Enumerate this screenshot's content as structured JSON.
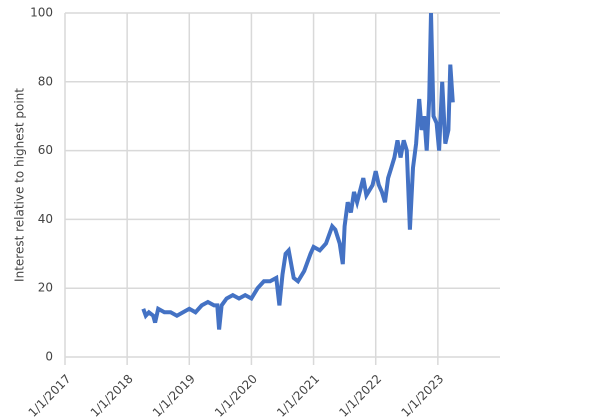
{
  "chart_data": {
    "type": "line",
    "ylabel": "Interest relative to highest point",
    "xlim": [
      2017,
      2024
    ],
    "ylim": [
      0,
      100
    ],
    "xticks": [
      {
        "value": 2017,
        "label": "1/1/2017"
      },
      {
        "value": 2018,
        "label": "1/1/2018"
      },
      {
        "value": 2019,
        "label": "1/1/2019"
      },
      {
        "value": 2020,
        "label": "1/1/2020"
      },
      {
        "value": 2021,
        "label": "1/1/2021"
      },
      {
        "value": 2022,
        "label": "1/1/2022"
      },
      {
        "value": 2023,
        "label": "1/1/2023"
      }
    ],
    "yticks": [
      0,
      20,
      40,
      60,
      80,
      100
    ],
    "grid": true,
    "x": [
      2018.26,
      2018.3,
      2018.35,
      2018.42,
      2018.45,
      2018.5,
      2018.6,
      2018.7,
      2018.8,
      2018.9,
      2019.0,
      2019.1,
      2019.2,
      2019.3,
      2019.4,
      2019.45,
      2019.48,
      2019.52,
      2019.6,
      2019.7,
      2019.8,
      2019.9,
      2020.0,
      2020.1,
      2020.2,
      2020.3,
      2020.4,
      2020.45,
      2020.5,
      2020.55,
      2020.6,
      2020.68,
      2020.75,
      2020.85,
      2020.95,
      2021.0,
      2021.1,
      2021.2,
      2021.3,
      2021.35,
      2021.42,
      2021.47,
      2021.5,
      2021.55,
      2021.6,
      2021.65,
      2021.7,
      2021.8,
      2021.85,
      2021.95,
      2022.0,
      2022.05,
      2022.1,
      2022.15,
      2022.2,
      2022.25,
      2022.3,
      2022.35,
      2022.4,
      2022.45,
      2022.5,
      2022.55,
      2022.6,
      2022.65,
      2022.7,
      2022.74,
      2022.78,
      2022.82,
      2022.86,
      2022.89,
      2022.93,
      2022.98,
      2023.02,
      2023.07,
      2023.12,
      2023.17,
      2023.2,
      2023.24
    ],
    "series": [
      {
        "name": "Interest",
        "color": "#4472c4",
        "values": [
          14,
          12,
          13,
          12,
          10,
          14,
          13,
          13,
          12,
          13,
          14,
          13,
          15,
          16,
          15,
          15,
          8,
          15,
          17,
          18,
          17,
          18,
          17,
          20,
          22,
          22,
          23,
          15,
          24,
          30,
          31,
          23,
          22,
          25,
          30,
          32,
          31,
          33,
          38,
          37,
          33,
          27,
          38,
          45,
          42,
          48,
          45,
          52,
          47,
          50,
          54,
          50,
          48,
          45,
          52,
          55,
          58,
          63,
          58,
          63,
          60,
          37,
          55,
          62,
          75,
          66,
          70,
          60,
          75,
          100,
          70,
          68,
          60,
          80,
          62,
          66,
          85,
          74
        ]
      }
    ]
  }
}
